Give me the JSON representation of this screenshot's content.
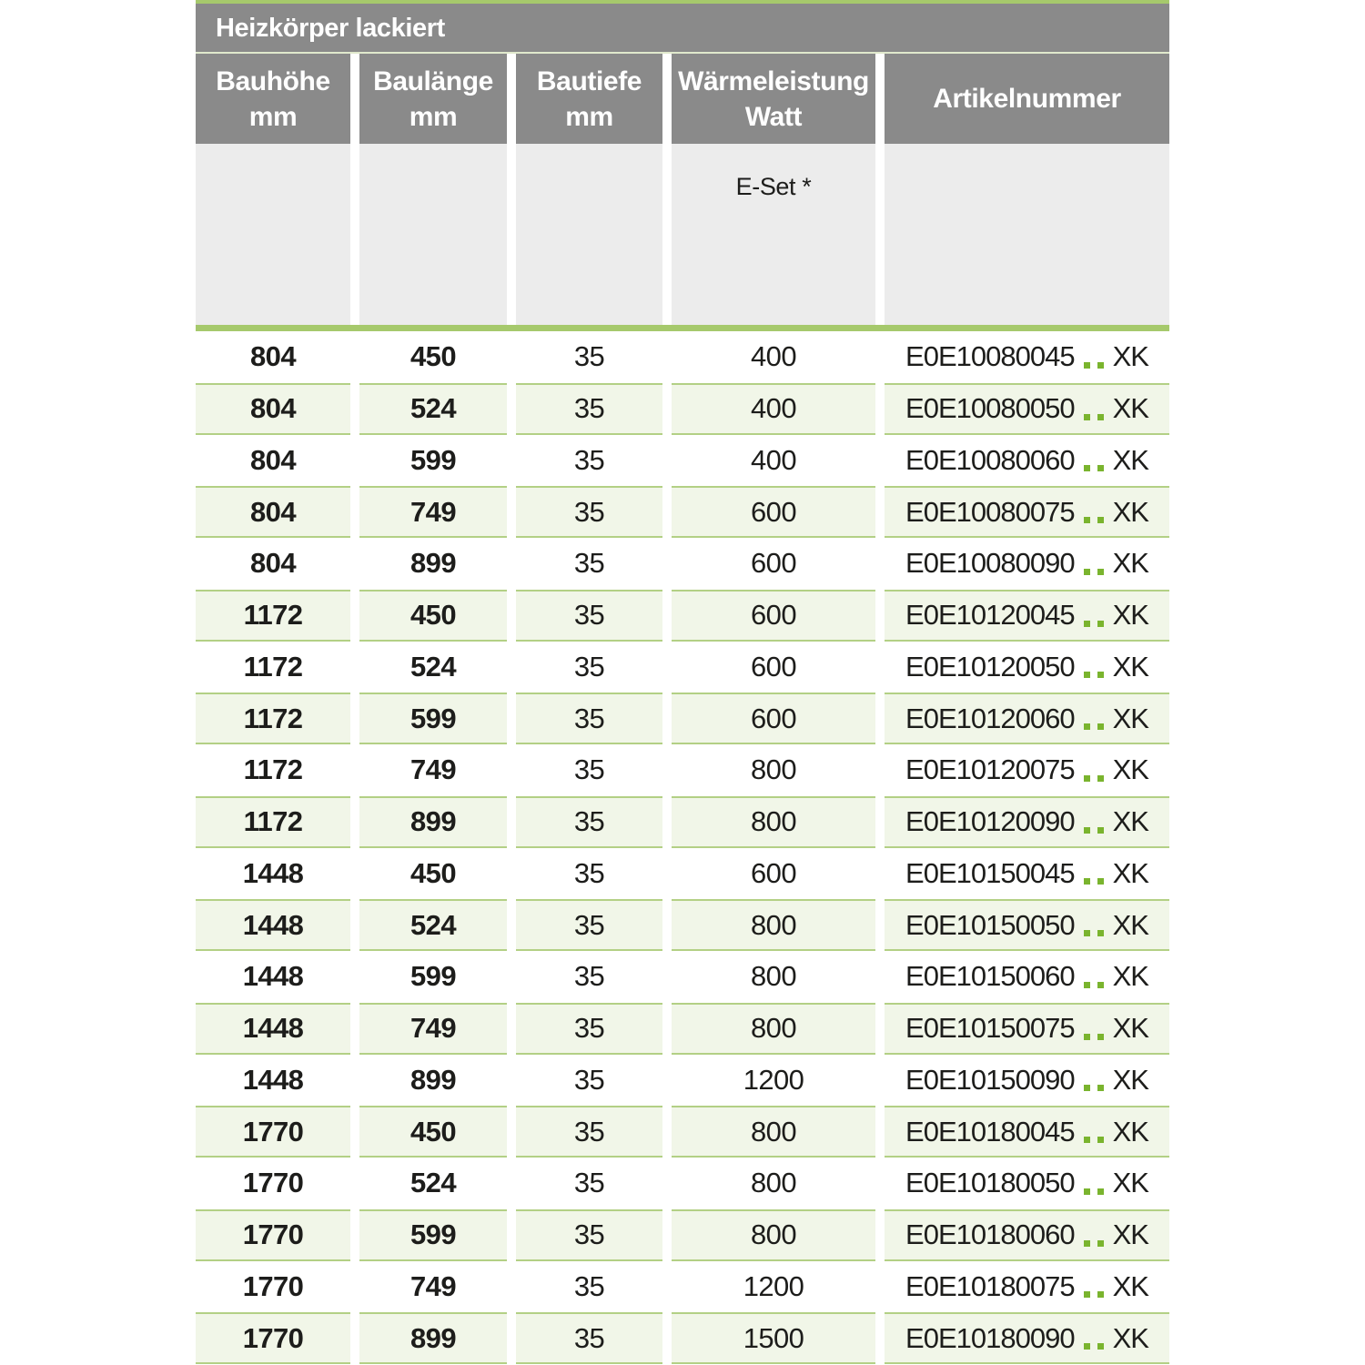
{
  "title": "Heizkörper lackiert",
  "header": {
    "columns": [
      {
        "line1": "Bauhöhe",
        "line2": "mm"
      },
      {
        "line1": "Baulänge",
        "line2": "mm"
      },
      {
        "line1": "Bautiefe",
        "line2": "mm"
      },
      {
        "line1": "Wärmeleistung",
        "line2": "Watt"
      },
      {
        "line1": "Artikelnummer",
        "line2": ""
      }
    ],
    "subnote": "E-Set *"
  },
  "table": {
    "column_keys": [
      "bauhoehe_mm",
      "baulaenge_mm",
      "bautiefe_mm",
      "waermeleistung_watt",
      "artikelnummer"
    ],
    "rows": [
      [
        "804",
        "450",
        "35",
        "400",
        "E0E10080045..XK"
      ],
      [
        "804",
        "524",
        "35",
        "400",
        "E0E10080050..XK"
      ],
      [
        "804",
        "599",
        "35",
        "400",
        "E0E10080060..XK"
      ],
      [
        "804",
        "749",
        "35",
        "600",
        "E0E10080075..XK"
      ],
      [
        "804",
        "899",
        "35",
        "600",
        "E0E10080090..XK"
      ],
      [
        "1172",
        "450",
        "35",
        "600",
        "E0E10120045..XK"
      ],
      [
        "1172",
        "524",
        "35",
        "600",
        "E0E10120050..XK"
      ],
      [
        "1172",
        "599",
        "35",
        "600",
        "E0E10120060..XK"
      ],
      [
        "1172",
        "749",
        "35",
        "800",
        "E0E10120075..XK"
      ],
      [
        "1172",
        "899",
        "35",
        "800",
        "E0E10120090..XK"
      ],
      [
        "1448",
        "450",
        "35",
        "600",
        "E0E10150045..XK"
      ],
      [
        "1448",
        "524",
        "35",
        "800",
        "E0E10150050..XK"
      ],
      [
        "1448",
        "599",
        "35",
        "800",
        "E0E10150060..XK"
      ],
      [
        "1448",
        "749",
        "35",
        "800",
        "E0E10150075..XK"
      ],
      [
        "1448",
        "899",
        "35",
        "1200",
        "E0E10150090..XK"
      ],
      [
        "1770",
        "450",
        "35",
        "800",
        "E0E10180045..XK"
      ],
      [
        "1770",
        "524",
        "35",
        "800",
        "E0E10180050..XK"
      ],
      [
        "1770",
        "599",
        "35",
        "800",
        "E0E10180060..XK"
      ],
      [
        "1770",
        "749",
        "35",
        "1200",
        "E0E10180075..XK"
      ],
      [
        "1770",
        "899",
        "35",
        "1500",
        "E0E10180090..XK"
      ]
    ]
  },
  "colors": {
    "header_gray": "#8a8a8a",
    "subheader_gray": "#ececec",
    "accent_green_dot": "#7ab42e",
    "bar_green": "#a6c96c",
    "row_green_bg": "#f1f6e8",
    "row_green_border": "#b3d085",
    "text_dark": "#1d1d1b"
  }
}
